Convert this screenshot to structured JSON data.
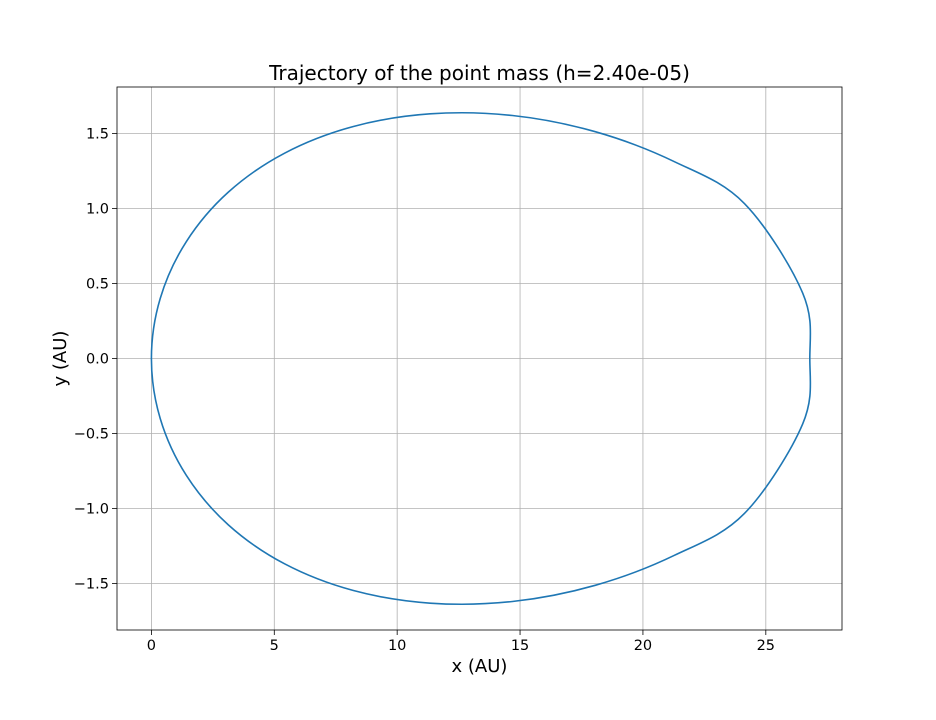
{
  "chart_data": {
    "type": "line",
    "title": "Trajectory of the point mass (h=2.40e-05)",
    "xlabel": "x (AU)",
    "ylabel": "y (AU)",
    "xlim": [
      -1.4,
      28.1
    ],
    "ylim": [
      -1.81,
      1.81
    ],
    "xticks": [
      0,
      5,
      10,
      15,
      20,
      25
    ],
    "xtick_labels": [
      "0",
      "5",
      "10",
      "15",
      "20",
      "25"
    ],
    "yticks": [
      -1.5,
      -1.0,
      -0.5,
      0.0,
      0.5,
      1.0,
      1.5
    ],
    "ytick_labels": [
      "−1.5",
      "−1.0",
      "−0.5",
      "0.0",
      "0.5",
      "1.0",
      "1.5"
    ],
    "grid": true,
    "series": [
      {
        "color": "#1f77b4",
        "x": [
          0.0,
          0.36,
          1.42,
          3.13,
          5.42,
          8.2,
          11.34,
          14.69,
          18.06,
          21.27,
          24.13,
          26.5,
          26.79,
          26.5,
          24.13,
          21.27,
          18.06,
          14.69,
          11.34,
          8.2,
          5.42,
          3.13,
          1.42,
          0.36,
          0.0
        ],
        "y": [
          0.0,
          0.401,
          0.779,
          1.109,
          1.369,
          1.546,
          1.631,
          1.62,
          1.512,
          1.313,
          1.033,
          0.436,
          0.0,
          -0.436,
          -1.033,
          -1.313,
          -1.512,
          -1.62,
          -1.631,
          -1.546,
          -1.369,
          -1.109,
          -0.779,
          -0.401,
          0.0
        ]
      }
    ]
  }
}
